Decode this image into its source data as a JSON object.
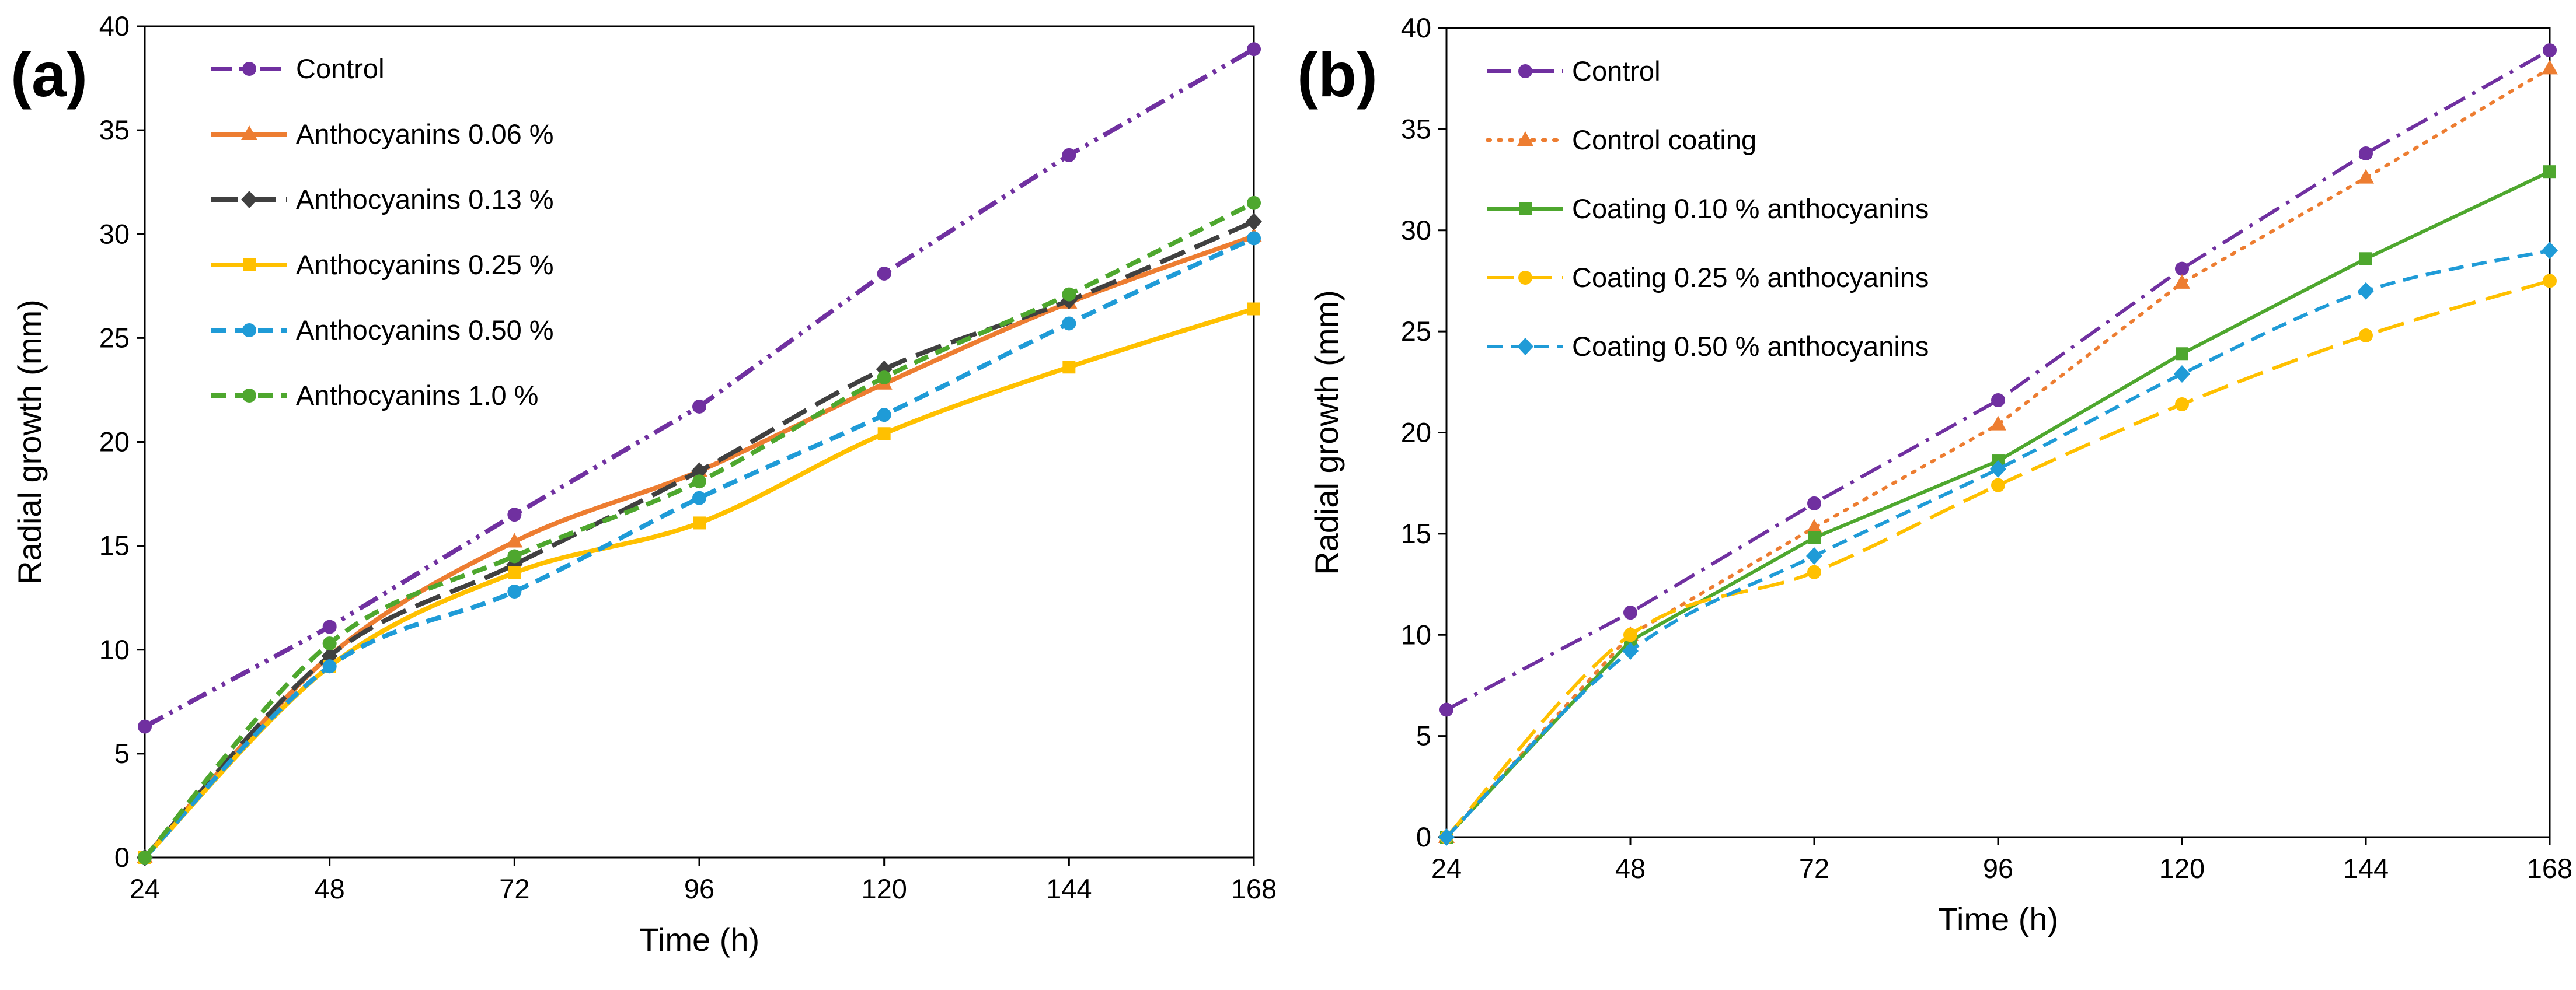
{
  "figure": {
    "panels": [
      {
        "label": "(a)"
      },
      {
        "label": "(b)"
      }
    ]
  },
  "chart_data": [
    {
      "type": "line",
      "panel_label": "(a)",
      "title": "",
      "xlabel": "Time (h)",
      "ylabel": "Radial growth (mm)",
      "x": [
        24,
        48,
        72,
        96,
        120,
        144,
        168
      ],
      "x_ticks": [
        "24",
        "48",
        "72",
        "96",
        "120",
        "144",
        "168"
      ],
      "y_ticks": [
        "0",
        "5",
        "10",
        "15",
        "20",
        "25",
        "30",
        "35",
        "40"
      ],
      "ylim": [
        0,
        40
      ],
      "grid": false,
      "legend_position": "top-left",
      "series": [
        {
          "name": "Control",
          "values": [
            6.3,
            11.1,
            16.5,
            21.7,
            28.1,
            33.8,
            38.9
          ],
          "color": "#7030A0",
          "dash": "dash-dot-dot",
          "marker": "circle",
          "smooth": false
        },
        {
          "name": "Anthocyanins 0.06 %",
          "values": [
            0,
            9.7,
            15.2,
            18.6,
            22.8,
            26.7,
            29.9
          ],
          "color": "#ED7D31",
          "dash": "solid",
          "marker": "triangle",
          "smooth": true
        },
        {
          "name": "Anthocyanins 0.13 %",
          "values": [
            0,
            9.7,
            14.1,
            18.6,
            23.5,
            26.8,
            30.6
          ],
          "color": "#404040",
          "dash": "long-dash",
          "marker": "diamond",
          "smooth": true
        },
        {
          "name": "Anthocyanins 0.25 %",
          "values": [
            0,
            9.2,
            13.7,
            16.1,
            20.4,
            23.6,
            26.4
          ],
          "color": "#FFC000",
          "dash": "solid",
          "marker": "square",
          "smooth": true
        },
        {
          "name": "Anthocyanins 0.50 %",
          "values": [
            0,
            9.2,
            12.8,
            17.3,
            21.3,
            25.7,
            29.8
          ],
          "color": "#1F9BD7",
          "dash": "dash",
          "marker": "circle",
          "smooth": true
        },
        {
          "name": "Anthocyanins 1.0 %",
          "values": [
            0,
            10.3,
            14.5,
            18.1,
            23.1,
            27.1,
            31.5
          ],
          "color": "#4EA72E",
          "dash": "dash",
          "marker": "circle",
          "smooth": true
        }
      ]
    },
    {
      "type": "line",
      "panel_label": "(b)",
      "title": "",
      "xlabel": "Time (h)",
      "ylabel": "Radial growth (mm)",
      "x": [
        24,
        48,
        72,
        96,
        120,
        144,
        168
      ],
      "x_ticks": [
        "24",
        "48",
        "72",
        "96",
        "120",
        "144",
        "168"
      ],
      "y_ticks": [
        "0",
        "5",
        "10",
        "15",
        "20",
        "25",
        "30",
        "35",
        "40"
      ],
      "ylim": [
        0,
        40
      ],
      "grid": false,
      "legend_position": "top-left",
      "series": [
        {
          "name": "Control",
          "values": [
            6.3,
            11.1,
            16.5,
            21.6,
            28.1,
            33.8,
            38.9
          ],
          "color": "#7030A0",
          "dash": "dash-dot",
          "marker": "circle",
          "smooth": false
        },
        {
          "name": "Control coating",
          "values": [
            0,
            10.0,
            15.3,
            20.4,
            27.4,
            32.6,
            38.0
          ],
          "color": "#ED7D31",
          "dash": "dot",
          "marker": "triangle",
          "smooth": false
        },
        {
          "name": "Coating 0.10 % anthocyanins",
          "values": [
            0,
            9.7,
            14.8,
            18.6,
            23.9,
            28.6,
            32.9
          ],
          "color": "#4EA72E",
          "dash": "solid",
          "marker": "square",
          "smooth": false
        },
        {
          "name": "Coating 0.25 % anthocyanins",
          "values": [
            0,
            10.0,
            13.1,
            17.4,
            21.4,
            24.8,
            27.5
          ],
          "color": "#FFC000",
          "dash": "long-dash",
          "marker": "circle",
          "smooth": true
        },
        {
          "name": "Coating 0.50 % anthocyanins",
          "values": [
            0,
            9.2,
            13.9,
            18.2,
            22.9,
            27.0,
            29.0
          ],
          "color": "#1F9BD7",
          "dash": "dash",
          "marker": "diamond",
          "smooth": true
        }
      ]
    }
  ]
}
